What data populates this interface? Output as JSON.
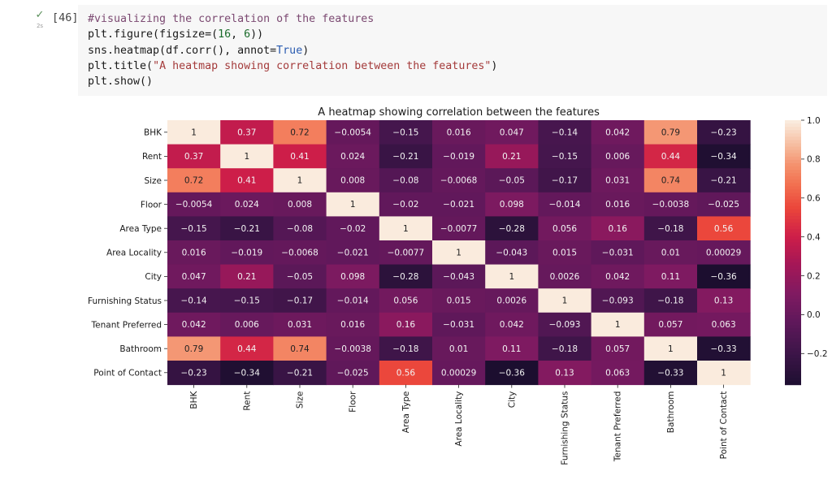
{
  "cell": {
    "exec_count": "[46]",
    "runtime": "2s",
    "code_lines": [
      [
        {
          "t": "#visualizing the correlation of the features",
          "c": "comment"
        }
      ],
      [
        {
          "t": "plt.figure(figsize=(",
          "c": ""
        },
        {
          "t": "16",
          "c": "num"
        },
        {
          "t": ", ",
          "c": ""
        },
        {
          "t": "6",
          "c": "num"
        },
        {
          "t": "))",
          "c": ""
        }
      ],
      [
        {
          "t": "sns.heatmap(df.corr(), annot=",
          "c": ""
        },
        {
          "t": "True",
          "c": "kw"
        },
        {
          "t": ")",
          "c": ""
        }
      ],
      [
        {
          "t": "plt.title(",
          "c": ""
        },
        {
          "t": "\"A heatmap showing correlation between the features\"",
          "c": "str"
        },
        {
          "t": ")",
          "c": ""
        }
      ],
      [
        {
          "t": "plt.show()",
          "c": ""
        }
      ]
    ]
  },
  "chart_data": {
    "type": "heatmap",
    "title": "A heatmap showing correlation between the features",
    "labels": [
      "BHK",
      "Rent",
      "Size",
      "Floor",
      "Area Type",
      "Area Locality",
      "City",
      "Furnishing Status",
      "Tenant Preferred",
      "Bathroom",
      "Point of Contact"
    ],
    "values": [
      [
        1,
        0.37,
        0.72,
        -0.0054,
        -0.15,
        0.016,
        0.047,
        -0.14,
        0.042,
        0.79,
        -0.23
      ],
      [
        0.37,
        1,
        0.41,
        0.024,
        -0.21,
        -0.019,
        0.21,
        -0.15,
        0.006,
        0.44,
        -0.34
      ],
      [
        0.72,
        0.41,
        1,
        0.008,
        -0.08,
        -0.0068,
        -0.05,
        -0.17,
        0.031,
        0.74,
        -0.21
      ],
      [
        -0.0054,
        0.024,
        0.008,
        1,
        -0.02,
        -0.021,
        0.098,
        -0.014,
        0.016,
        -0.0038,
        -0.025
      ],
      [
        -0.15,
        -0.21,
        -0.08,
        -0.02,
        1,
        -0.0077,
        -0.28,
        0.056,
        0.16,
        -0.18,
        0.56
      ],
      [
        0.016,
        -0.019,
        -0.0068,
        -0.021,
        -0.0077,
        1,
        -0.043,
        0.015,
        -0.031,
        0.01,
        0.00029
      ],
      [
        0.047,
        0.21,
        -0.05,
        0.098,
        -0.28,
        -0.043,
        1,
        0.0026,
        0.042,
        0.11,
        -0.36
      ],
      [
        -0.14,
        -0.15,
        -0.17,
        -0.014,
        0.056,
        0.015,
        0.0026,
        1,
        -0.093,
        -0.18,
        0.13
      ],
      [
        0.042,
        0.006,
        0.031,
        0.016,
        0.16,
        -0.031,
        0.042,
        -0.093,
        1,
        0.057,
        0.063
      ],
      [
        0.79,
        0.44,
        0.74,
        -0.0038,
        -0.18,
        0.01,
        0.11,
        -0.18,
        0.057,
        1,
        -0.33
      ],
      [
        -0.23,
        -0.34,
        -0.21,
        -0.025,
        0.56,
        0.00029,
        -0.36,
        0.13,
        0.063,
        -0.33,
        1
      ]
    ],
    "colorbar": {
      "vmin": -0.36,
      "vmax": 1.0,
      "ticks": [
        -0.2,
        0.0,
        0.2,
        0.4,
        0.6,
        0.8,
        1.0
      ],
      "tick_labels": [
        "−0.2",
        "0.0",
        "0.2",
        "0.4",
        "0.6",
        "0.8",
        "1.0"
      ],
      "colormap": "rocket"
    }
  }
}
